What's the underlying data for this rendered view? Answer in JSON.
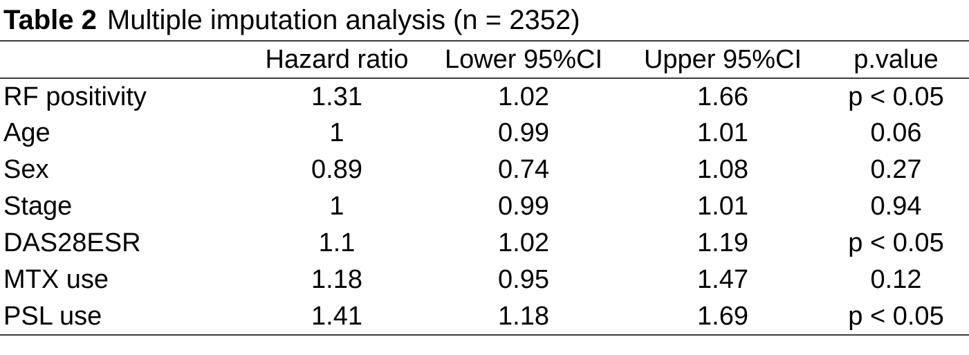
{
  "table": {
    "title_number": "Table 2",
    "title_caption": "Multiple imputation analysis (n = 2352)",
    "columns": {
      "label": "",
      "hazard_ratio": "Hazard ratio",
      "lower_ci": "Lower 95%CI",
      "upper_ci": "Upper 95%CI",
      "p_value": "p.value"
    },
    "rows": [
      {
        "label": "RF positivity",
        "hazard_ratio": "1.31",
        "lower_ci": "1.02",
        "upper_ci": "1.66",
        "p_value": "p < 0.05"
      },
      {
        "label": "Age",
        "hazard_ratio": "1",
        "lower_ci": "0.99",
        "upper_ci": "1.01",
        "p_value": "0.06"
      },
      {
        "label": "Sex",
        "hazard_ratio": "0.89",
        "lower_ci": "0.74",
        "upper_ci": "1.08",
        "p_value": "0.27"
      },
      {
        "label": "Stage",
        "hazard_ratio": "1",
        "lower_ci": "0.99",
        "upper_ci": "1.01",
        "p_value": "0.94"
      },
      {
        "label": "DAS28ESR",
        "hazard_ratio": "1.1",
        "lower_ci": "1.02",
        "upper_ci": "1.19",
        "p_value": "p < 0.05"
      },
      {
        "label": "MTX use",
        "hazard_ratio": "1.18",
        "lower_ci": "0.95",
        "upper_ci": "1.47",
        "p_value": "0.12"
      },
      {
        "label": "PSL use",
        "hazard_ratio": "1.41",
        "lower_ci": "1.18",
        "upper_ci": "1.69",
        "p_value": "p < 0.05"
      }
    ],
    "colors": {
      "rule": "#3b3b3b",
      "text": "#000000",
      "background": "#ffffff"
    }
  },
  "chart_data": {
    "type": "table",
    "title": "Table 2  Multiple imputation analysis (n = 2352)",
    "columns": [
      "",
      "Hazard ratio",
      "Lower 95%CI",
      "Upper 95%CI",
      "p.value"
    ],
    "rows": [
      [
        "RF positivity",
        "1.31",
        "1.02",
        "1.66",
        "p < 0.05"
      ],
      [
        "Age",
        "1",
        "0.99",
        "1.01",
        "0.06"
      ],
      [
        "Sex",
        "0.89",
        "0.74",
        "1.08",
        "0.27"
      ],
      [
        "Stage",
        "1",
        "0.99",
        "1.01",
        "0.94"
      ],
      [
        "DAS28ESR",
        "1.1",
        "1.02",
        "1.19",
        "p < 0.05"
      ],
      [
        "MTX use",
        "1.18",
        "0.95",
        "1.47",
        "0.12"
      ],
      [
        "PSL use",
        "1.41",
        "1.18",
        "1.69",
        "p < 0.05"
      ]
    ]
  }
}
